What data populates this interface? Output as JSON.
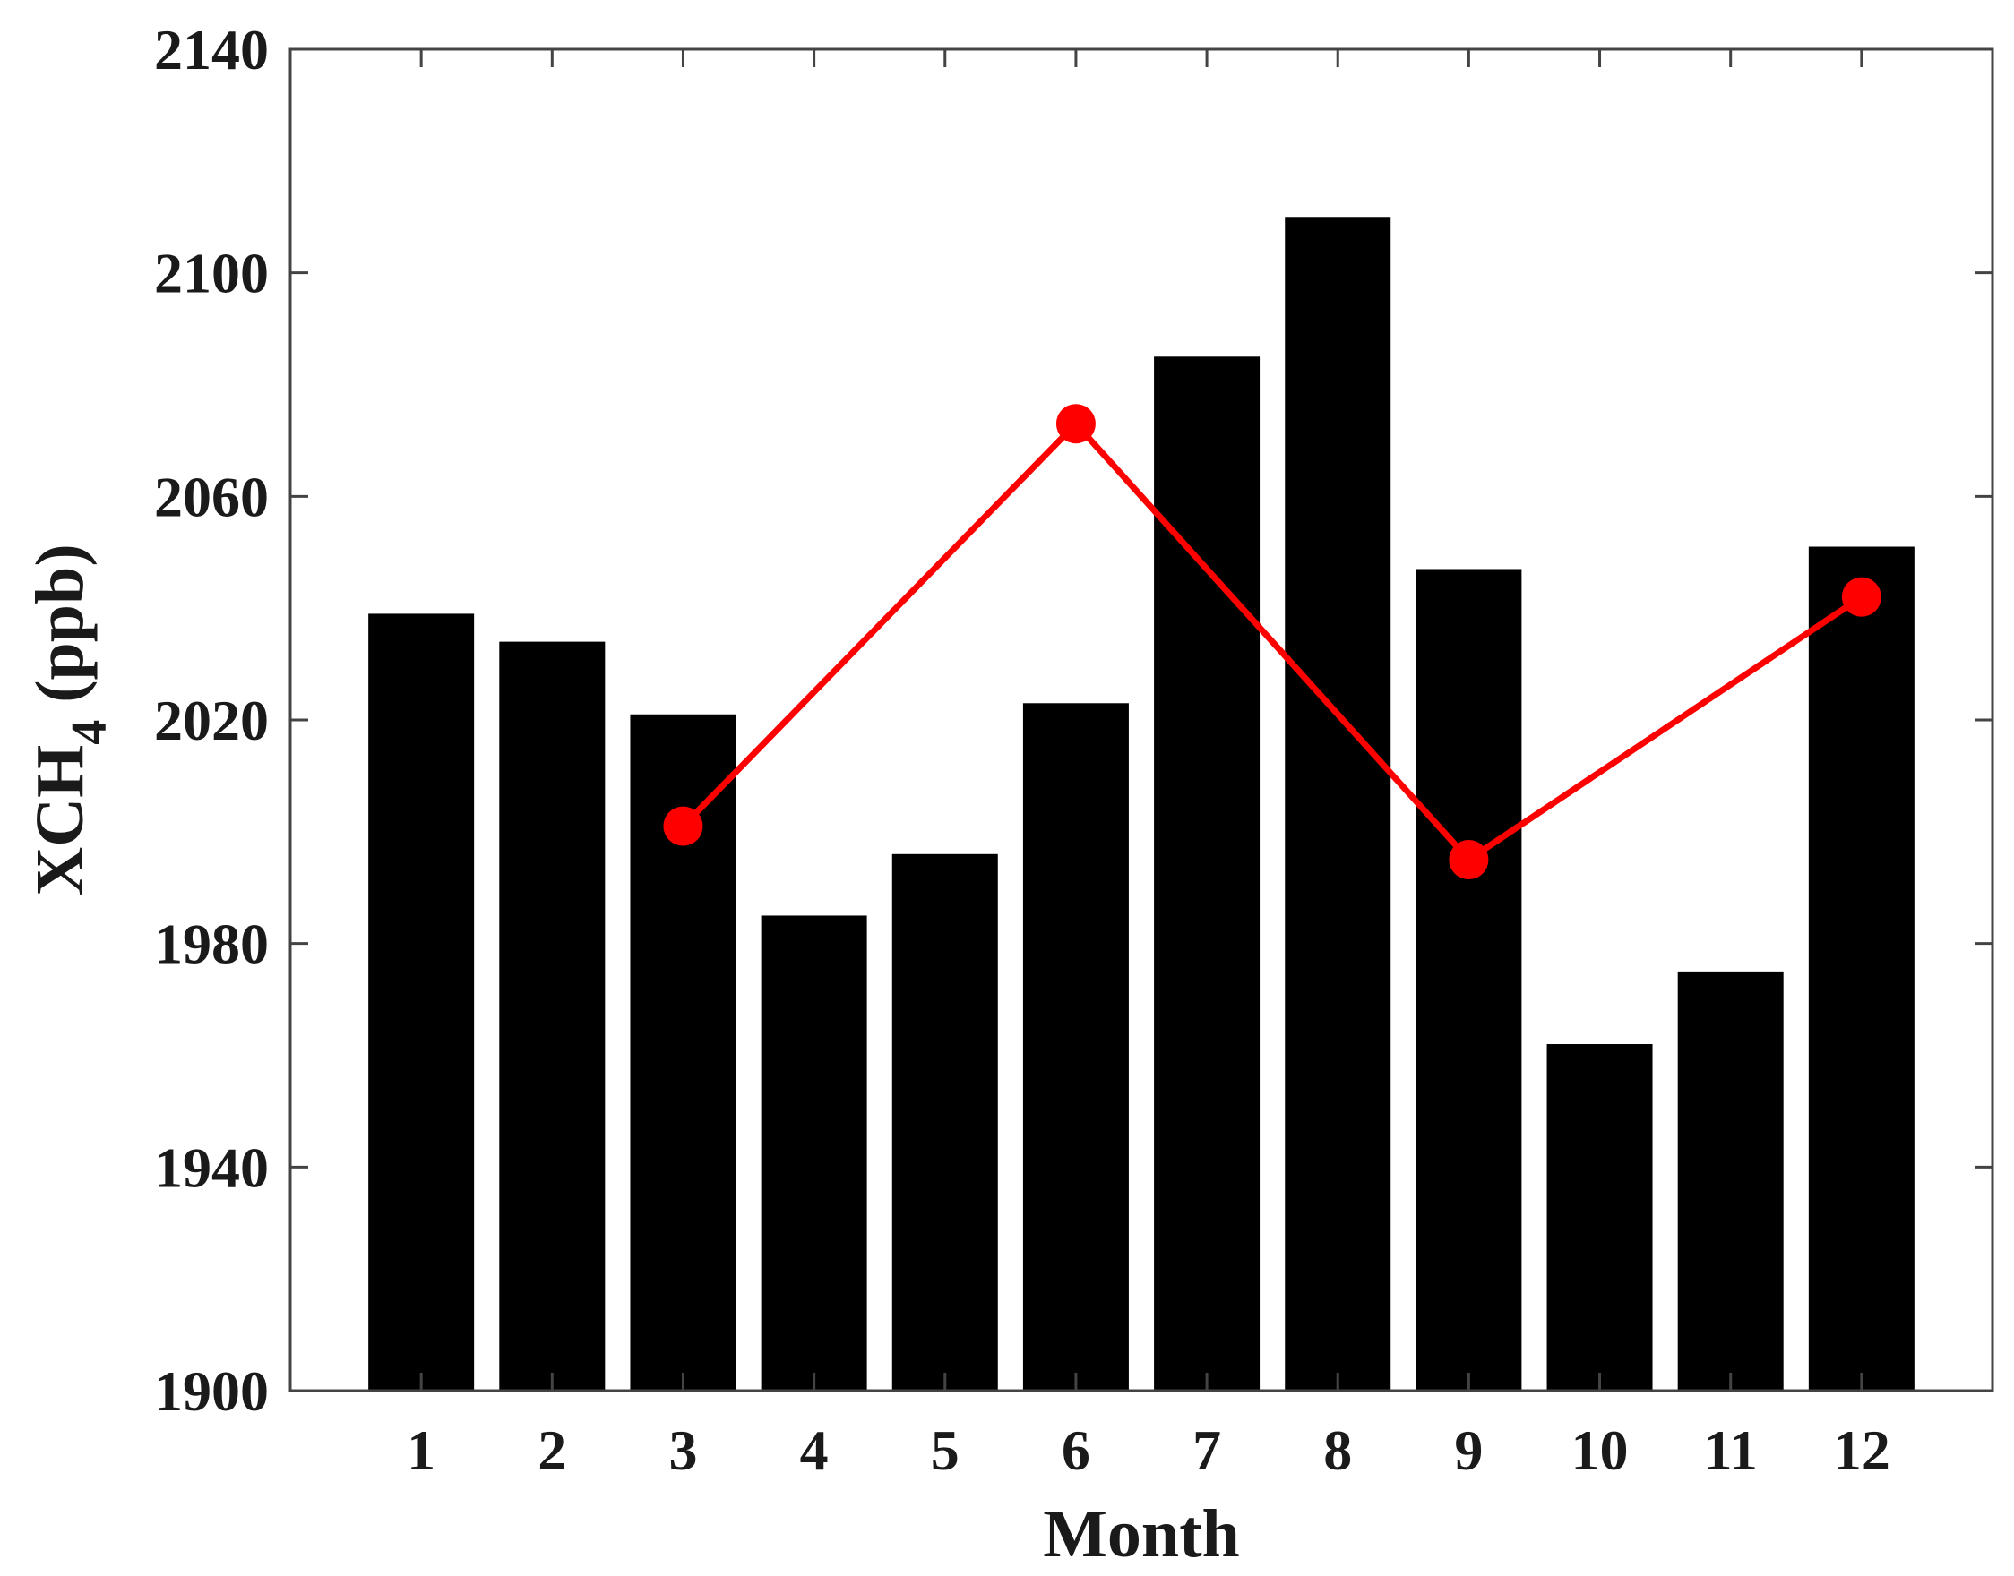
{
  "chart_data": {
    "type": "bar",
    "title": "",
    "xlabel": "Month",
    "ylabel_main": "XCH",
    "ylabel_sub": "4",
    "ylabel_unit": " (ppb)",
    "ylim": [
      1900,
      2140
    ],
    "yticks": [
      1900,
      1940,
      1980,
      2020,
      2060,
      2100,
      2140
    ],
    "categories": [
      "1",
      "2",
      "3",
      "4",
      "5",
      "6",
      "7",
      "8",
      "9",
      "10",
      "11",
      "12"
    ],
    "values": [
      2039,
      2034,
      2021,
      1985,
      1996,
      2023,
      2085,
      2110,
      2047,
      1962,
      1975,
      2051
    ],
    "bar_color": "#000000",
    "grid": false,
    "legend": "none",
    "overlay_series": {
      "type": "line",
      "color": "#ff0000",
      "marker": "circle",
      "x": [
        "3",
        "6",
        "9",
        "12"
      ],
      "y": [
        2001,
        2073,
        1995,
        2042
      ]
    }
  }
}
